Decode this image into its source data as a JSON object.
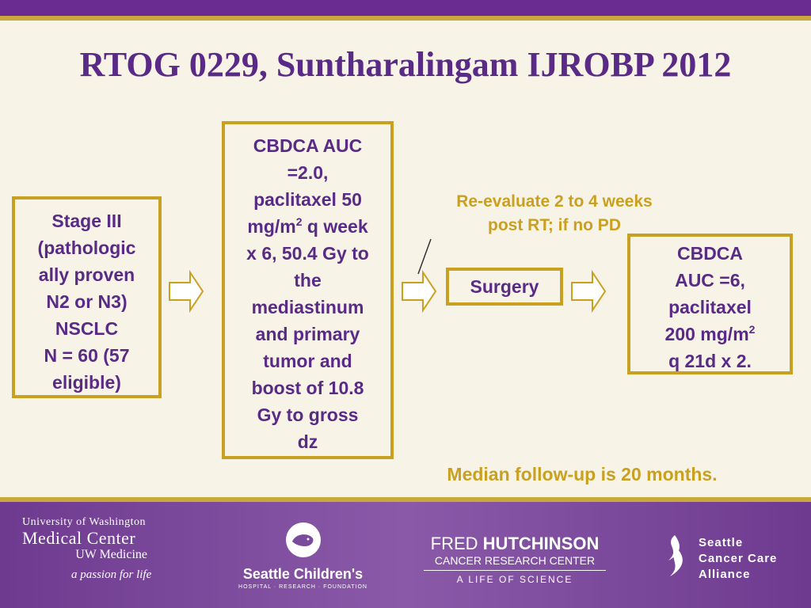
{
  "title": "RTOG 0229, Suntharalingam IJROBP 2012",
  "stage_box": [
    "Stage III",
    "(pathologic",
    "ally proven",
    "N2 or N3)",
    "NSCLC",
    "N = 60 (57",
    "eligible)"
  ],
  "chemo_box": {
    "l1": "CBDCA AUC",
    "l2": "=2.0,",
    "l3": "paclitaxel 50",
    "l4a": "mg/m",
    "l4sup": "2",
    "l4b": " q week",
    "l5": "x 6, 50.4 Gy to",
    "l6": "the",
    "l7": "mediastinum",
    "l8": "and primary",
    "l9": "tumor and",
    "l10": "boost of 10.8",
    "l11": "Gy to gross",
    "l12": "dz"
  },
  "reevaluate_note": [
    "Re-evaluate 2 to 4 weeks",
    "post RT; if no PD"
  ],
  "surgery_box": "Surgery",
  "adjuvant_box": {
    "l1": "CBDCA",
    "l2": "AUC =6,",
    "l3": "paclitaxel",
    "l4a": "200 mg/m",
    "l4sup": "2",
    "l5": "q 21d x 2."
  },
  "followup_note": "Median follow-up is 20 months.",
  "colors": {
    "purple": "#5a2b86",
    "gold": "#c9a020",
    "background": "#f7f3e6"
  },
  "footer": {
    "uw": [
      "University of Washington",
      "Medical Center",
      "UW Medicine",
      "a passion for life"
    ],
    "seattle_childrens": [
      "Seattle Children's",
      "HOSPITAL · RESEARCH · FOUNDATION"
    ],
    "fred_hutch": [
      "FRED",
      "HUTCHINSON",
      "CANCER RESEARCH CENTER",
      "A LIFE OF SCIENCE"
    ],
    "scca": [
      "Seattle",
      "Cancer Care",
      "Alliance"
    ]
  }
}
